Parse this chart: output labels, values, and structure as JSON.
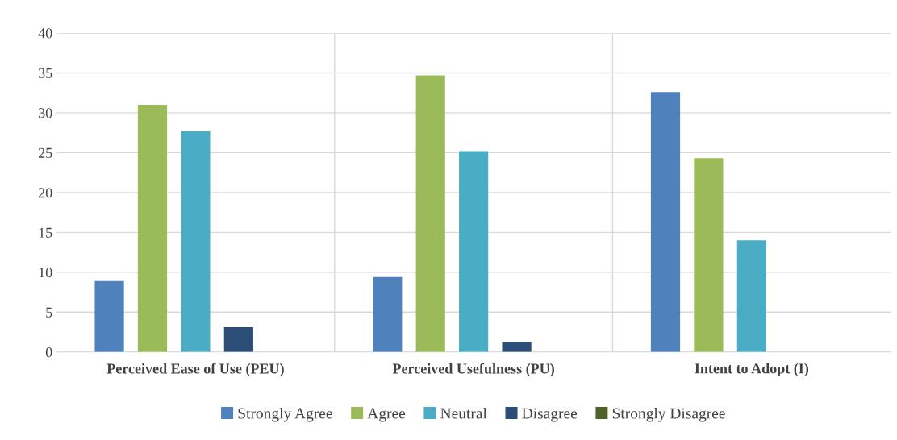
{
  "chart_data": {
    "type": "bar",
    "categories": [
      "Perceived Ease of Use (PEU)",
      "Perceived Usefulness (PU)",
      "Intent to Adopt (I)"
    ],
    "series": [
      {
        "name": "Strongly Agree",
        "color": "#4f81bd",
        "values": [
          8.9,
          9.4,
          32.6
        ]
      },
      {
        "name": "Agree",
        "color": "#9bbb59",
        "values": [
          31.0,
          34.7,
          24.3
        ]
      },
      {
        "name": "Neutral",
        "color": "#4bacc6",
        "values": [
          27.7,
          25.2,
          14.0
        ]
      },
      {
        "name": "Disagree",
        "color": "#2c4d75",
        "values": [
          3.1,
          1.3,
          0
        ]
      },
      {
        "name": "Strongly Disagree",
        "color": "#4f6228",
        "values": [
          0,
          0,
          0
        ]
      }
    ],
    "ylim": [
      0,
      40
    ],
    "yticks": [
      0,
      5,
      10,
      15,
      20,
      25,
      30,
      35,
      40
    ],
    "grid": true,
    "legend": "bottom"
  }
}
